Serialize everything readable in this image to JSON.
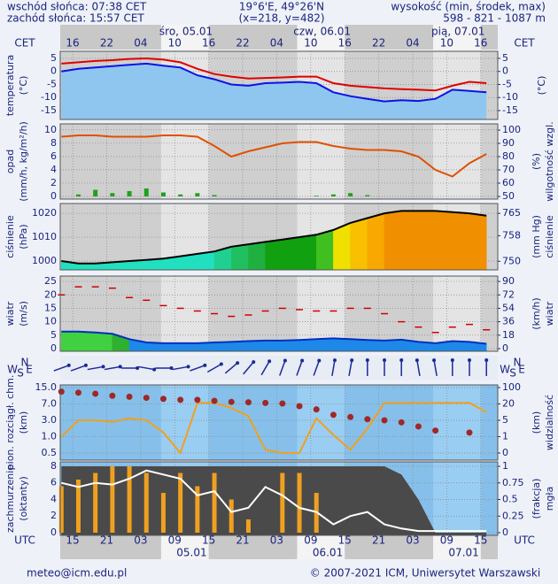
{
  "header": {
    "sunrise": "wschód słońca: 07:38 CET",
    "sunset": "zachód słońca: 15:57 CET",
    "coords": "19°6'E, 49°26'N",
    "grid": "(x=218, y=482)",
    "elev_title": "wysokość (min, środek, max)",
    "elev": "598 - 821 - 1087 m"
  },
  "time_axis": {
    "top_zone": "CET",
    "bottom_zone": "UTC",
    "xlim": [
      -2.2,
      75
    ],
    "x": [
      -2,
      1,
      4,
      7,
      10,
      13,
      16,
      19,
      22,
      25,
      28,
      31,
      34,
      37,
      40,
      43,
      46,
      49,
      52,
      55,
      58,
      61,
      64,
      67,
      70,
      73
    ],
    "cet_ticks": [
      {
        "value": 0,
        "label": "16"
      },
      {
        "value": 6,
        "label": "22"
      },
      {
        "value": 12,
        "label": "04"
      },
      {
        "value": 18,
        "label": "10"
      },
      {
        "value": 24,
        "label": "16"
      },
      {
        "value": 30,
        "label": "22"
      },
      {
        "value": 36,
        "label": "04"
      },
      {
        "value": 42,
        "label": "10"
      },
      {
        "value": 48,
        "label": "16"
      },
      {
        "value": 54,
        "label": "22"
      },
      {
        "value": 60,
        "label": "04"
      },
      {
        "value": 66,
        "label": "10"
      },
      {
        "value": 72,
        "label": "16"
      }
    ],
    "utc_ticks": [
      {
        "value": 0,
        "label": "15"
      },
      {
        "value": 6,
        "label": "21"
      },
      {
        "value": 12,
        "label": "03"
      },
      {
        "value": 18,
        "label": "09"
      },
      {
        "value": 24,
        "label": "15"
      },
      {
        "value": 30,
        "label": "21"
      },
      {
        "value": 36,
        "label": "03"
      },
      {
        "value": 42,
        "label": "09"
      },
      {
        "value": 48,
        "label": "15"
      },
      {
        "value": 54,
        "label": "21"
      },
      {
        "value": 60,
        "label": "03"
      },
      {
        "value": 66,
        "label": "09"
      },
      {
        "value": 72,
        "label": "15"
      }
    ],
    "cet_days": [
      {
        "value": 8,
        "label": "śro, 05.01"
      },
      {
        "value": 32,
        "label": "czw, 06.01"
      },
      {
        "value": 56,
        "label": "pią, 07.01"
      }
    ],
    "utc_days": [
      {
        "value": 9,
        "label": "05.01"
      },
      {
        "value": 33,
        "label": "06.01"
      },
      {
        "value": 57,
        "label": "07.01"
      }
    ]
  },
  "panels": [
    {
      "y_label": [
        "temperatura",
        "(°C)"
      ],
      "y2_label": [
        "(°C)"
      ],
      "ylim": [
        -18.4,
        7.7
      ],
      "yticks": [
        5,
        0,
        -5,
        -10,
        -15
      ],
      "y2lim": [
        -18.4,
        7.7
      ],
      "y2ticks": [
        5,
        0,
        -5,
        -10,
        -15
      ],
      "series": [
        {
          "type": "area",
          "color": "#8fc6f0",
          "values": [
            0,
            1,
            1.5,
            2,
            2.5,
            3,
            2.2,
            1.5,
            -1.5,
            -3,
            -5,
            -5.5,
            -4.5,
            -4.3,
            -4,
            -4.5,
            -8,
            -9.5,
            -10.5,
            -11.5,
            -11,
            -11.3,
            -10.5,
            -7,
            -7.5,
            -8
          ]
        },
        {
          "type": "line",
          "color": "#0a14e6",
          "values": [
            0,
            1,
            1.5,
            2,
            2.5,
            3,
            2.2,
            1.5,
            -1.5,
            -3,
            -5,
            -5.5,
            -4.5,
            -4.3,
            -4,
            -4.5,
            -8,
            -9.5,
            -10.5,
            -11.5,
            -11,
            -11.3,
            -10.5,
            -7,
            -7.5,
            -8
          ]
        },
        {
          "type": "line",
          "color": "#e00000",
          "values": [
            3,
            3.5,
            4,
            4.3,
            4.8,
            5,
            4.5,
            3.5,
            1,
            -1,
            -2,
            -2.7,
            -2.5,
            -2.3,
            -2,
            -2,
            -4.5,
            -5.5,
            -6,
            -6.5,
            -6.8,
            -7,
            -7.3,
            -5.5,
            -4,
            -4.5
          ]
        }
      ]
    },
    {
      "y_label": [
        "opad",
        "(mm/h, kg/m²/h)"
      ],
      "y2_label": [
        "(%)",
        "wilgotność wzgl."
      ],
      "ylim": [
        -0.4,
        10.9
      ],
      "yticks": [
        10,
        8,
        6,
        4,
        2,
        0
      ],
      "y2lim": [
        48,
        104.7
      ],
      "y2ticks": [
        100,
        90,
        80,
        70,
        60,
        50
      ],
      "series": [
        {
          "type": "bars",
          "color": "#20a020",
          "values": [
            0,
            0.3,
            1,
            0.5,
            0.8,
            1.2,
            0.6,
            0.3,
            0.5,
            0.2,
            0,
            0,
            0,
            0,
            0,
            0.1,
            0.3,
            0.5,
            0.2,
            0,
            0,
            0,
            0,
            0,
            0,
            0
          ]
        },
        {
          "type": "line",
          "axis": "y2",
          "color": "#e05000",
          "values": [
            95,
            96,
            96,
            95,
            95,
            95,
            96,
            96,
            95,
            88,
            80,
            84,
            87,
            90,
            91,
            91,
            88,
            86,
            85,
            85,
            84,
            80,
            70,
            65,
            75,
            82
          ]
        }
      ]
    },
    {
      "y_label": [
        "ciśnienie",
        "(hPa)"
      ],
      "y2_label": [
        "(mm Hg)",
        "ciśnienie"
      ],
      "ylim": [
        996.3,
        1024.1
      ],
      "yticks": [
        1020,
        1010,
        1000
      ],
      "y2lim": [
        747.3,
        768.1
      ],
      "y2ticks": [
        765,
        758,
        750
      ],
      "series": [
        {
          "type": "area",
          "values": [
            1000,
            999,
            999,
            999.5,
            1000,
            1000.5,
            1001,
            1002,
            1003,
            1004,
            1006,
            1007,
            1008,
            1009,
            1010,
            1011,
            1013,
            1016,
            1018,
            1020,
            1021,
            1021,
            1021,
            1020.5,
            1020,
            1019
          ],
          "colors": [
            "#20e0c0",
            "#20e0c0",
            "#20e0c0",
            "#20e0c0",
            "#20e0c0",
            "#20e0c0",
            "#20e0c0",
            "#20e0c0",
            "#20e0c0",
            "#20d090",
            "#20c060",
            "#20b040",
            "#10a010",
            "#10a010",
            "#10a010",
            "#40c020",
            "#f0e000",
            "#f8c000",
            "#f8a800",
            "#f09000",
            "#f09000",
            "#f09000",
            "#f09000",
            "#f09000",
            "#f09000",
            "#f09000"
          ]
        },
        {
          "type": "line",
          "color": "#000000",
          "values": [
            1000,
            999,
            999,
            999.5,
            1000,
            1000.5,
            1001,
            1002,
            1003,
            1004,
            1006,
            1007,
            1008,
            1009,
            1010,
            1011,
            1013,
            1016,
            1018,
            1020,
            1021,
            1021,
            1021,
            1020.5,
            1020,
            1019
          ]
        }
      ]
    },
    {
      "y_label": [
        "wiatr",
        "(m/s)"
      ],
      "y2_label": [
        "(km/h)",
        "wiatr"
      ],
      "ylim": [
        -1,
        27
      ],
      "yticks": [
        25,
        20,
        15,
        10,
        5,
        0
      ],
      "y2lim": [
        -3.6,
        97.2
      ],
      "y2ticks": [
        90,
        72,
        54,
        36,
        18,
        0
      ],
      "series": [
        {
          "type": "area",
          "values": [
            6.3,
            6.3,
            6,
            5.5,
            3.5,
            2.3,
            2,
            2,
            2,
            2.3,
            2.5,
            2.8,
            3,
            3,
            3.2,
            3.5,
            3.8,
            3.5,
            3.2,
            3,
            3.3,
            2.5,
            2,
            2.8,
            2.5,
            1.8
          ],
          "colors": [
            "#40d040",
            "#40d040",
            "#40d040",
            "#30b030",
            "#1e88e8",
            "#1e88e8",
            "#1e88e8",
            "#1e88e8",
            "#1e88e8",
            "#1e88e8",
            "#1e88e8",
            "#1e88e8",
            "#1e88e8",
            "#1e88e8",
            "#1e88e8",
            "#1e88e8",
            "#1e88e8",
            "#1e88e8",
            "#1e88e8",
            "#1e88e8",
            "#1e88e8",
            "#1e88e8",
            "#1e88e8",
            "#1e88e8",
            "#1e88e8",
            "#1e88e8"
          ]
        },
        {
          "type": "line",
          "color": "#0030c0",
          "values": [
            6.3,
            6.3,
            6,
            5.5,
            3.5,
            2.3,
            2,
            2,
            2,
            2.3,
            2.5,
            2.8,
            3,
            3,
            3.2,
            3.5,
            3.8,
            3.5,
            3.2,
            3,
            3.3,
            2.5,
            2,
            2.8,
            2.5,
            1.8
          ]
        },
        {
          "type": "dashes",
          "color": "#d00000",
          "values": [
            20,
            23,
            23,
            22.5,
            19,
            18,
            16,
            15,
            14,
            13,
            12,
            12.5,
            14,
            15,
            14.5,
            14,
            14,
            15,
            15,
            13,
            10,
            8,
            6,
            8,
            9,
            7
          ]
        }
      ]
    },
    {
      "y_label": [
        "pion. rozciągł. chm.",
        "(km)"
      ],
      "y2_label": [
        "(km)",
        "widzialność"
      ],
      "scale": "tick-spaced",
      "ylim": [
        0.5,
        15
      ],
      "yticks": [
        {
          "value": 15,
          "label": "15.0"
        },
        {
          "value": 7,
          "label": "7.0"
        },
        {
          "value": 3,
          "label": "3.0"
        },
        {
          "value": 1,
          "label": "1.0"
        },
        0.5
      ],
      "y2lim": [
        0,
        100
      ],
      "y2ticks": [
        100,
        20,
        5,
        1,
        0
      ],
      "series": [
        {
          "type": "line",
          "color": "#f0a020",
          "values": [
            1,
            3,
            3,
            2.8,
            3.5,
            3,
            1.5,
            0.5,
            7.5,
            7.5,
            6,
            4,
            0.6,
            0.5,
            0.5,
            3.5,
            1.2,
            0.6,
            2,
            7.5,
            7.5,
            7.5,
            7.5,
            7.5,
            7.5,
            5
          ]
        },
        {
          "type": "dots",
          "axis": "y2",
          "color": "#a02828",
          "values": [
            80,
            75,
            70,
            60,
            55,
            50,
            45,
            40,
            40,
            35,
            30,
            28,
            25,
            22,
            18,
            15,
            10,
            8,
            6,
            5,
            4.5,
            3.5,
            2.5,
            null,
            2,
            null
          ]
        }
      ]
    },
    {
      "y_label": [
        "zachmurzenie",
        "(oktanty)"
      ],
      "y2_label": [
        "(frakcja)",
        "mgła"
      ],
      "ylim": [
        -0.32,
        8.53
      ],
      "yticks": [
        8,
        6,
        4,
        2,
        0
      ],
      "y2lim": [
        -0.04,
        1.067
      ],
      "y2ticks": [
        1,
        0.75,
        0.5,
        0.25,
        0
      ],
      "series": [
        {
          "type": "area",
          "color": "#4a4a4a",
          "values": [
            8,
            8,
            8,
            8,
            8,
            8,
            8,
            8,
            8,
            8,
            8,
            8,
            8,
            8,
            8,
            8,
            8,
            8,
            8,
            8,
            7,
            4,
            0,
            0,
            0,
            0
          ]
        },
        {
          "type": "bars",
          "axis": "y2",
          "color": "#f0a020",
          "values": [
            0.7,
            0.8,
            0.9,
            1,
            1,
            0.9,
            0.6,
            0.9,
            0.7,
            0.9,
            0.5,
            0.2,
            0,
            0.9,
            0.9,
            0.6,
            0,
            0,
            0,
            0,
            0,
            0,
            0,
            0,
            0,
            0
          ]
        },
        {
          "type": "line",
          "color": "#ffffff",
          "values": [
            6,
            5.5,
            6,
            5.8,
            6.5,
            7.5,
            7,
            6.5,
            4.5,
            5,
            2.5,
            3,
            5.5,
            4.5,
            3,
            2.5,
            1,
            2,
            2.5,
            1,
            0.5,
            0.2,
            0.2,
            0.2,
            0.2,
            0.2
          ]
        }
      ]
    }
  ],
  "wind_direction": {
    "compass": [
      "W",
      "S",
      "N",
      "E"
    ],
    "color": "#1a2a9a",
    "values": [
      250,
      250,
      260,
      260,
      270,
      280,
      270,
      260,
      250,
      240,
      230,
      220,
      210,
      200,
      200,
      200,
      190,
      190,
      180,
      180,
      180,
      170,
      170,
      180,
      180,
      180
    ]
  },
  "footer": {
    "email": "meteo@icm.edu.pl",
    "copyright": "© 2007-2021 ICM, Uniwersytet Warszawski"
  }
}
